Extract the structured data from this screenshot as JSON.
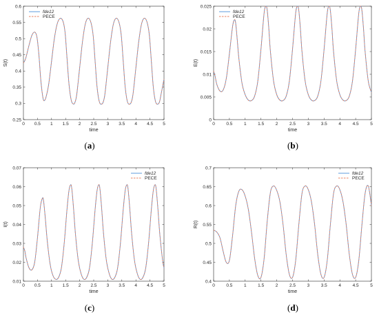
{
  "colors": {
    "fde12": "#4a90d9",
    "pece": "#e8805e",
    "axis": "#262626"
  },
  "chart_data": [
    {
      "type": "line",
      "panel": "a",
      "caption": "(a)",
      "xlabel": "time",
      "ylabel": "S(t)",
      "xlim": [
        0,
        5
      ],
      "ylim": [
        0.25,
        0.6
      ],
      "xticks": [
        "0",
        "0.5",
        "1",
        "1.5",
        "2",
        "2.5",
        "3",
        "3.5",
        "4",
        "4.5",
        "5"
      ],
      "yticks": [
        "0.25",
        "0.3",
        "0.35",
        "0.4",
        "0.45",
        "0.5",
        "0.55",
        "0.6"
      ],
      "legend_position": "top-left",
      "series": [
        {
          "name": "fde12",
          "x": [
            0,
            0.05,
            0.1,
            0.2,
            0.3,
            0.4,
            0.48,
            0.55,
            0.62,
            0.7,
            0.76,
            0.82,
            0.9,
            1.0,
            1.1,
            1.2,
            1.3,
            1.4,
            1.48,
            1.55,
            1.62,
            1.7,
            1.78,
            1.84,
            1.9,
            2.0,
            2.1,
            2.2,
            2.3,
            2.4,
            2.48,
            2.55,
            2.62,
            2.7,
            2.78,
            2.84,
            2.9,
            3.0,
            3.1,
            3.2,
            3.3,
            3.4,
            3.48,
            3.55,
            3.62,
            3.7,
            3.78,
            3.84,
            3.9,
            4.0,
            4.1,
            4.2,
            4.3,
            4.4,
            4.48,
            4.55,
            4.62,
            4.7,
            4.78,
            4.84,
            4.9,
            5.0
          ],
          "y": [
            0.425,
            0.432,
            0.445,
            0.48,
            0.51,
            0.52,
            0.505,
            0.45,
            0.37,
            0.315,
            0.31,
            0.325,
            0.36,
            0.43,
            0.5,
            0.545,
            0.562,
            0.555,
            0.52,
            0.44,
            0.36,
            0.31,
            0.298,
            0.305,
            0.33,
            0.41,
            0.49,
            0.545,
            0.563,
            0.55,
            0.51,
            0.43,
            0.35,
            0.305,
            0.298,
            0.305,
            0.33,
            0.41,
            0.49,
            0.545,
            0.563,
            0.55,
            0.51,
            0.43,
            0.35,
            0.305,
            0.298,
            0.305,
            0.33,
            0.41,
            0.49,
            0.545,
            0.563,
            0.55,
            0.51,
            0.43,
            0.35,
            0.305,
            0.298,
            0.305,
            0.33,
            0.375
          ]
        },
        {
          "name": "PECE",
          "same_as": "fde12"
        }
      ]
    },
    {
      "type": "line",
      "panel": "b",
      "caption": "(b)",
      "xlabel": "time",
      "ylabel": "E(t)",
      "xlim": [
        0,
        5
      ],
      "ylim": [
        0,
        0.025
      ],
      "xticks": [
        "0",
        "0.5",
        "1",
        "1.5",
        "2",
        "2.5",
        "3",
        "3.5",
        "4",
        "4.5",
        "5"
      ],
      "yticks": [
        "0",
        "0.005",
        "0.01",
        "0.015",
        "0.02",
        "0.025"
      ],
      "legend_position": "top-left",
      "series": [
        {
          "name": "fde12",
          "x": [
            0,
            0.05,
            0.1,
            0.2,
            0.3,
            0.4,
            0.5,
            0.6,
            0.66,
            0.7,
            0.75,
            0.8,
            0.9,
            1.0,
            1.1,
            1.2,
            1.3,
            1.4,
            1.5,
            1.6,
            1.66,
            1.7,
            1.75,
            1.8,
            1.9,
            2.0,
            2.1,
            2.2,
            2.3,
            2.4,
            2.5,
            2.6,
            2.66,
            2.7,
            2.75,
            2.8,
            2.9,
            3.0,
            3.1,
            3.2,
            3.3,
            3.4,
            3.5,
            3.6,
            3.66,
            3.7,
            3.75,
            3.8,
            3.9,
            4.0,
            4.1,
            4.2,
            4.3,
            4.4,
            4.5,
            4.6,
            4.66,
            4.7,
            4.75,
            4.8,
            4.9,
            5.0
          ],
          "y": [
            0.0107,
            0.0095,
            0.0078,
            0.0063,
            0.0065,
            0.009,
            0.0145,
            0.0205,
            0.022,
            0.0212,
            0.0175,
            0.0135,
            0.008,
            0.0055,
            0.0043,
            0.0042,
            0.0052,
            0.0085,
            0.0155,
            0.0235,
            0.025,
            0.024,
            0.02,
            0.015,
            0.0085,
            0.0055,
            0.0043,
            0.0042,
            0.0052,
            0.0085,
            0.0155,
            0.0235,
            0.025,
            0.024,
            0.02,
            0.015,
            0.0085,
            0.0055,
            0.0043,
            0.0042,
            0.0052,
            0.0085,
            0.0155,
            0.0235,
            0.025,
            0.024,
            0.02,
            0.015,
            0.0085,
            0.0055,
            0.0043,
            0.0042,
            0.0052,
            0.0085,
            0.0155,
            0.0235,
            0.025,
            0.024,
            0.02,
            0.015,
            0.0085,
            0.006
          ]
        },
        {
          "name": "PECE",
          "same_as": "fde12"
        }
      ]
    },
    {
      "type": "line",
      "panel": "c",
      "caption": "(c)",
      "xlabel": "time",
      "ylabel": "I(t)",
      "xlim": [
        0,
        5
      ],
      "ylim": [
        0.01,
        0.07
      ],
      "xticks": [
        "0",
        "0.5",
        "1",
        "1.5",
        "2",
        "2.5",
        "3",
        "3.5",
        "4",
        "4.5",
        "5"
      ],
      "yticks": [
        "0.01",
        "0.02",
        "0.03",
        "0.04",
        "0.05",
        "0.06",
        "0.07"
      ],
      "legend_position": "top-right",
      "series": [
        {
          "name": "fde12",
          "x": [
            0,
            0.05,
            0.1,
            0.2,
            0.3,
            0.4,
            0.5,
            0.6,
            0.68,
            0.72,
            0.78,
            0.85,
            0.95,
            1.05,
            1.15,
            1.25,
            1.35,
            1.45,
            1.55,
            1.62,
            1.68,
            1.72,
            1.78,
            1.85,
            1.95,
            2.05,
            2.15,
            2.25,
            2.35,
            2.45,
            2.55,
            2.62,
            2.68,
            2.72,
            2.78,
            2.85,
            2.95,
            3.05,
            3.15,
            3.25,
            3.35,
            3.45,
            3.55,
            3.62,
            3.68,
            3.72,
            3.78,
            3.85,
            3.95,
            4.05,
            4.15,
            4.25,
            4.35,
            4.45,
            4.55,
            4.62,
            4.68,
            4.72,
            4.78,
            4.85,
            4.95,
            5.0
          ],
          "y": [
            0.028,
            0.026,
            0.022,
            0.017,
            0.016,
            0.02,
            0.033,
            0.049,
            0.054,
            0.052,
            0.043,
            0.031,
            0.019,
            0.013,
            0.011,
            0.012,
            0.017,
            0.03,
            0.048,
            0.058,
            0.061,
            0.059,
            0.049,
            0.035,
            0.021,
            0.014,
            0.011,
            0.012,
            0.017,
            0.03,
            0.048,
            0.058,
            0.061,
            0.059,
            0.049,
            0.035,
            0.021,
            0.014,
            0.011,
            0.012,
            0.017,
            0.03,
            0.048,
            0.058,
            0.061,
            0.059,
            0.049,
            0.035,
            0.021,
            0.014,
            0.011,
            0.012,
            0.017,
            0.03,
            0.048,
            0.058,
            0.061,
            0.059,
            0.049,
            0.035,
            0.021,
            0.017
          ]
        },
        {
          "name": "PECE",
          "same_as": "fde12"
        }
      ]
    },
    {
      "type": "line",
      "panel": "d",
      "caption": "(d)",
      "xlabel": "time",
      "ylabel": "R(t)",
      "xlim": [
        0,
        5
      ],
      "ylim": [
        0.4,
        0.7
      ],
      "xticks": [
        "0",
        "0.5",
        "1",
        "1.5",
        "2",
        "2.5",
        "3",
        "3.5",
        "4",
        "4.5",
        "5"
      ],
      "yticks": [
        "0.4",
        "0.45",
        "0.5",
        "0.55",
        "0.6",
        "0.65",
        "0.7"
      ],
      "legend_position": "top-right",
      "series": [
        {
          "name": "fde12",
          "x": [
            0,
            0.1,
            0.2,
            0.3,
            0.4,
            0.5,
            0.6,
            0.7,
            0.8,
            0.9,
            1.0,
            1.1,
            1.2,
            1.3,
            1.4,
            1.5,
            1.6,
            1.7,
            1.8,
            1.9,
            2.0,
            2.1,
            2.2,
            2.3,
            2.4,
            2.5,
            2.6,
            2.7,
            2.8,
            2.9,
            3.0,
            3.1,
            3.2,
            3.3,
            3.4,
            3.5,
            3.6,
            3.7,
            3.8,
            3.9,
            4.0,
            4.1,
            4.2,
            4.3,
            4.4,
            4.5,
            4.6,
            4.7,
            4.8,
            4.9,
            5.0
          ],
          "y": [
            0.535,
            0.53,
            0.515,
            0.48,
            0.45,
            0.455,
            0.52,
            0.6,
            0.638,
            0.642,
            0.625,
            0.59,
            0.53,
            0.46,
            0.415,
            0.41,
            0.46,
            0.56,
            0.635,
            0.652,
            0.64,
            0.61,
            0.55,
            0.47,
            0.418,
            0.41,
            0.455,
            0.55,
            0.632,
            0.652,
            0.642,
            0.61,
            0.55,
            0.47,
            0.418,
            0.41,
            0.455,
            0.55,
            0.632,
            0.652,
            0.642,
            0.61,
            0.55,
            0.47,
            0.418,
            0.41,
            0.455,
            0.55,
            0.632,
            0.652,
            0.6
          ]
        },
        {
          "name": "PECE",
          "same_as": "fde12"
        }
      ]
    }
  ]
}
